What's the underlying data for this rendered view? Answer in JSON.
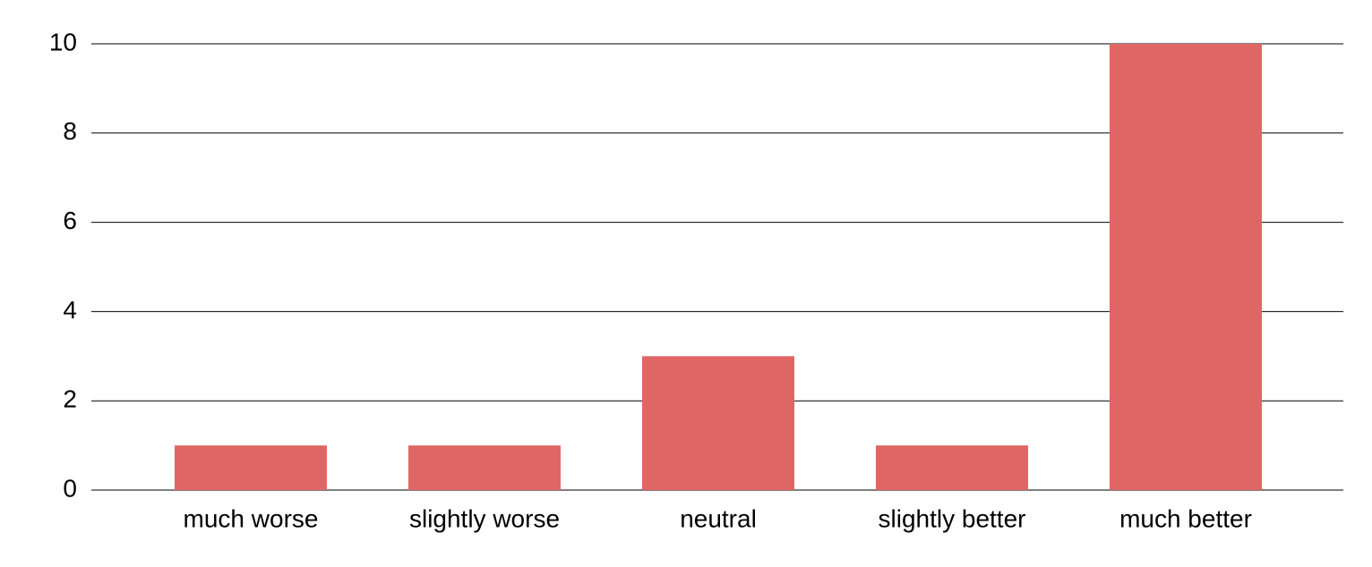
{
  "chart_data": {
    "type": "bar",
    "categories": [
      "much worse",
      "slightly worse",
      "neutral",
      "slightly better",
      "much better"
    ],
    "values": [
      1,
      1,
      3,
      1,
      10
    ],
    "color": "#e06666",
    "ylim": [
      0,
      10
    ],
    "yticks": [
      0,
      2,
      4,
      6,
      8,
      10
    ],
    "grid": true
  }
}
